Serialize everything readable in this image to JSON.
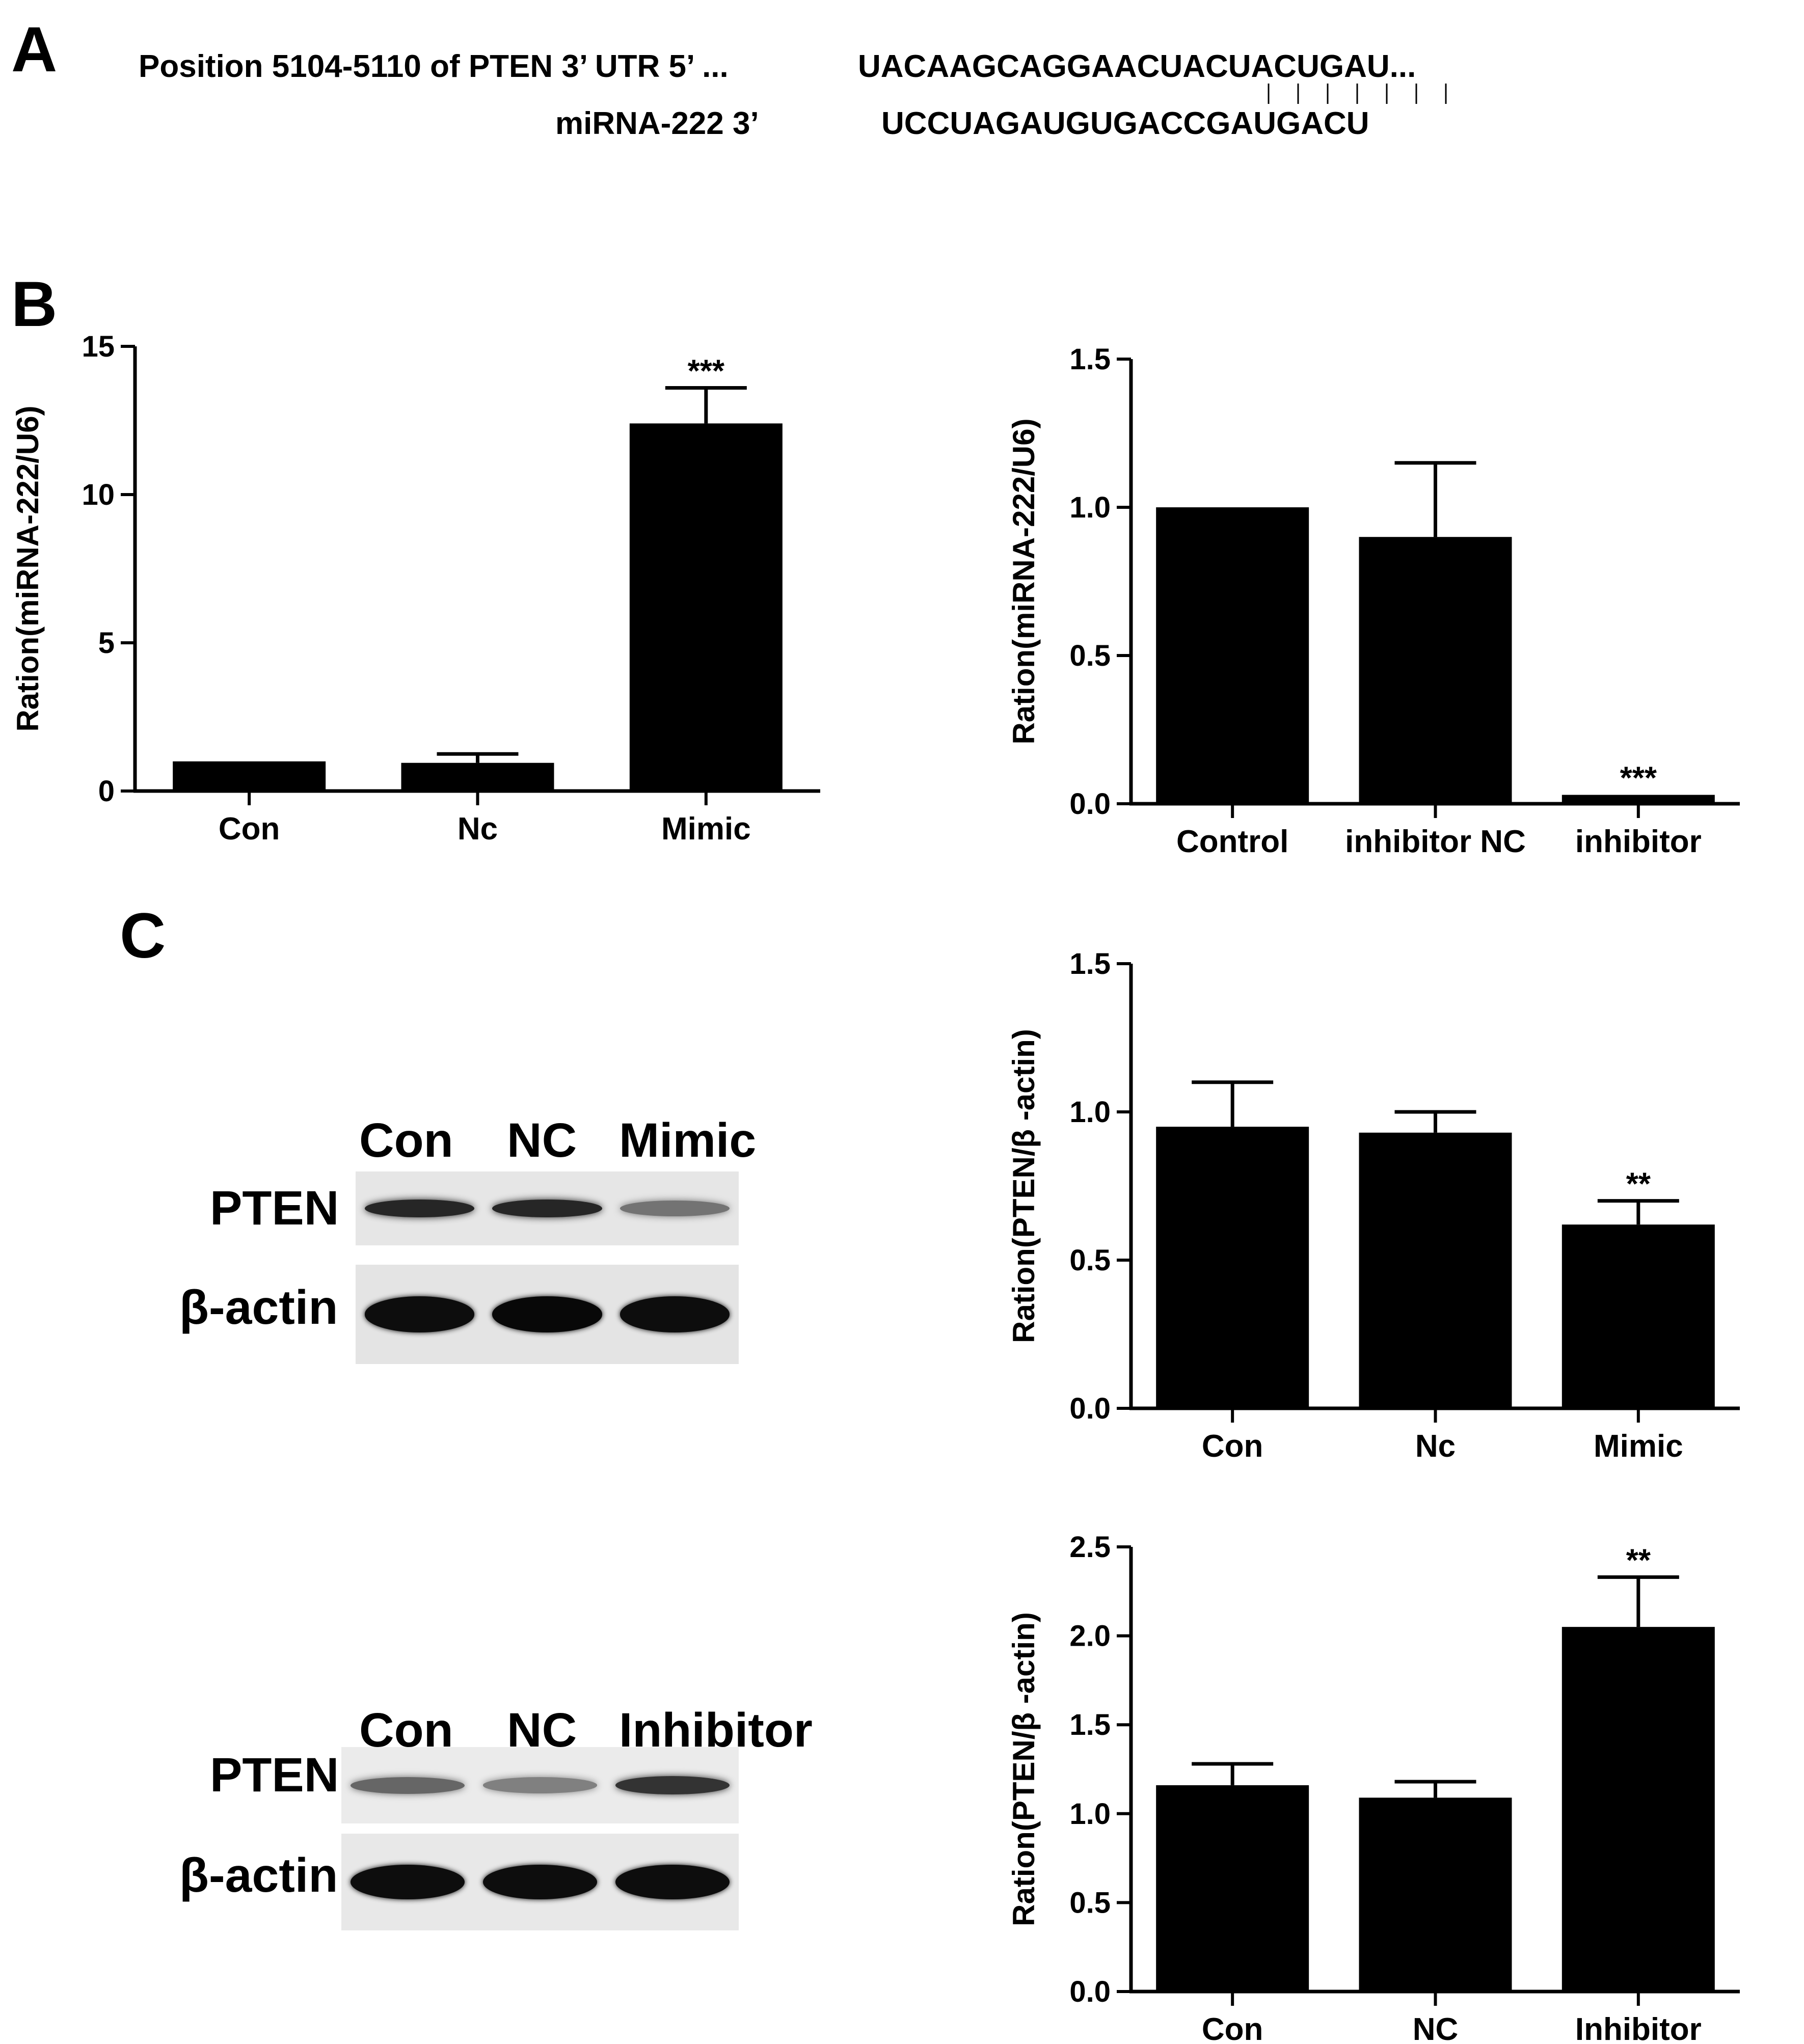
{
  "panels": {
    "a": "A",
    "b": "B",
    "c": "C"
  },
  "sequence": {
    "pten_prefix": "Position 5104-5110 of PTEN 3’ UTR 5’ ... ",
    "pten_seq": "UACAAGCAGGAACUACUACUGAU...",
    "mirna_prefix": "miRNA-222 3’",
    "mirna_seq": "UCCUAGAUGUGACCGAUGACU",
    "pairing_bars": 7
  },
  "chart_data": [
    {
      "id": "b-left",
      "type": "bar",
      "ylabel": "Ration(miRNA-222/U6)",
      "categories": [
        "Con",
        "Nc",
        "Mimic"
      ],
      "values": [
        1.0,
        0.95,
        12.4
      ],
      "errors": [
        0.0,
        0.3,
        1.2
      ],
      "annotations": [
        "",
        "",
        "***"
      ],
      "ylim": [
        0,
        15
      ],
      "yticks": [
        "0",
        "5",
        "10",
        "15"
      ],
      "ytick_values": [
        0,
        5,
        10,
        15
      ]
    },
    {
      "id": "b-right",
      "type": "bar",
      "ylabel": "Ration(miRNA-222/U6)",
      "categories": [
        "Control",
        "inhibitor NC",
        "inhibitor"
      ],
      "values": [
        1.0,
        0.9,
        0.03
      ],
      "errors": [
        0.0,
        0.25,
        0.0
      ],
      "annotations": [
        "",
        "",
        "***"
      ],
      "ylim": [
        0,
        1.5
      ],
      "yticks": [
        "0.0",
        "0.5",
        "1.0",
        "1.5"
      ],
      "ytick_values": [
        0,
        0.5,
        1.0,
        1.5
      ]
    },
    {
      "id": "c-top",
      "type": "bar",
      "ylabel": "Ration(PTEN/β -actin)",
      "categories": [
        "Con",
        "Nc",
        "Mimic"
      ],
      "values": [
        0.95,
        0.93,
        0.62
      ],
      "errors": [
        0.15,
        0.07,
        0.08
      ],
      "annotations": [
        "",
        "",
        "**"
      ],
      "ylim": [
        0,
        1.5
      ],
      "yticks": [
        "0.0",
        "0.5",
        "1.0",
        "1.5"
      ],
      "ytick_values": [
        0,
        0.5,
        1.0,
        1.5
      ]
    },
    {
      "id": "c-bottom",
      "type": "bar",
      "ylabel": "Ration(PTEN/β -actin)",
      "categories": [
        "Con",
        "NC",
        "Inhibitor"
      ],
      "values": [
        1.16,
        1.09,
        2.05
      ],
      "errors": [
        0.12,
        0.09,
        0.28
      ],
      "annotations": [
        "",
        "",
        "**"
      ],
      "ylim": [
        0,
        2.5
      ],
      "yticks": [
        "0.0",
        "0.5",
        "1.0",
        "1.5",
        "2.0",
        "2.5"
      ],
      "ytick_values": [
        0,
        0.5,
        1.0,
        1.5,
        2.0,
        2.5
      ]
    }
  ],
  "blots": {
    "top": {
      "lanes": [
        "Con",
        "NC",
        "Mimic"
      ],
      "rows": [
        "PTEN",
        "β-actin"
      ],
      "pten_intensity": [
        0.85,
        0.85,
        0.55
      ],
      "actin_intensity": [
        0.95,
        0.97,
        0.95
      ]
    },
    "bottom": {
      "lanes": [
        "Con",
        "NC",
        "Inhibitor"
      ],
      "rows": [
        "PTEN",
        "β-actin"
      ],
      "pten_intensity": [
        0.6,
        0.5,
        0.8
      ],
      "actin_intensity": [
        0.95,
        0.95,
        0.95
      ]
    }
  }
}
